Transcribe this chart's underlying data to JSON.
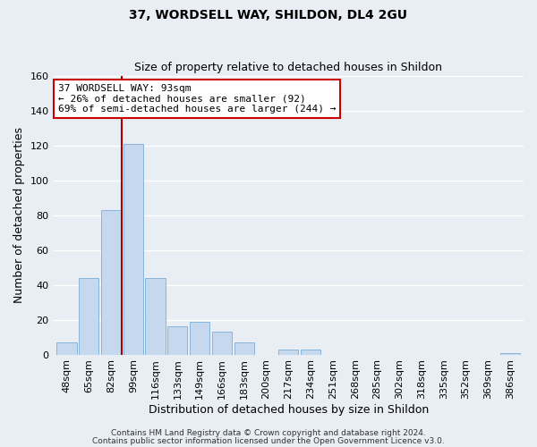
{
  "title": "37, WORDSELL WAY, SHILDON, DL4 2GU",
  "subtitle": "Size of property relative to detached houses in Shildon",
  "xlabel": "Distribution of detached houses by size in Shildon",
  "ylabel": "Number of detached properties",
  "bar_color": "#c5d8ed",
  "bar_edge_color": "#7aaed6",
  "categories": [
    "48sqm",
    "65sqm",
    "82sqm",
    "99sqm",
    "116sqm",
    "133sqm",
    "149sqm",
    "166sqm",
    "183sqm",
    "200sqm",
    "217sqm",
    "234sqm",
    "251sqm",
    "268sqm",
    "285sqm",
    "302sqm",
    "318sqm",
    "335sqm",
    "352sqm",
    "369sqm",
    "386sqm"
  ],
  "values": [
    7,
    44,
    83,
    121,
    44,
    16,
    19,
    13,
    7,
    0,
    3,
    3,
    0,
    0,
    0,
    0,
    0,
    0,
    0,
    0,
    1
  ],
  "ylim": [
    0,
    160
  ],
  "yticks": [
    0,
    20,
    40,
    60,
    80,
    100,
    120,
    140,
    160
  ],
  "vline_x_index": 3,
  "vline_color": "#aa0000",
  "annotation_title": "37 WORDSELL WAY: 93sqm",
  "annotation_line1": "← 26% of detached houses are smaller (92)",
  "annotation_line2": "69% of semi-detached houses are larger (244) →",
  "annotation_box_facecolor": "#ffffff",
  "annotation_box_edgecolor": "#cc0000",
  "footer1": "Contains HM Land Registry data © Crown copyright and database right 2024.",
  "footer2": "Contains public sector information licensed under the Open Government Licence v3.0.",
  "background_color": "#e8eef4",
  "plot_background": "#e8eef4",
  "grid_color": "#ffffff",
  "title_fontsize": 10,
  "subtitle_fontsize": 9,
  "ylabel_fontsize": 9,
  "xlabel_fontsize": 9,
  "tick_labelsize": 8,
  "annot_fontsize": 8
}
